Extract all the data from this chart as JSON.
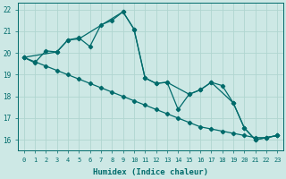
{
  "xlabel": "Humidex (Indice chaleur)",
  "xlim": [
    -0.5,
    23.5
  ],
  "ylim": [
    15.5,
    22.3
  ],
  "yticks": [
    16,
    17,
    18,
    19,
    20,
    21,
    22
  ],
  "xticks": [
    0,
    1,
    2,
    3,
    4,
    5,
    6,
    7,
    8,
    9,
    10,
    11,
    12,
    13,
    14,
    15,
    16,
    17,
    18,
    19,
    20,
    21,
    22,
    23
  ],
  "bg_color": "#cde8e5",
  "line_color": "#006b6b",
  "grid_color": "#b0d5d0",
  "lines": [
    {
      "x": [
        0,
        1,
        2,
        3,
        4,
        5,
        6,
        7,
        8,
        9,
        10,
        11,
        12,
        13,
        14,
        15,
        16,
        17,
        18,
        19,
        20,
        21,
        22,
        23
      ],
      "y": [
        19.8,
        19.6,
        19.4,
        19.2,
        19.0,
        18.8,
        18.6,
        18.4,
        18.2,
        18.0,
        17.8,
        17.6,
        17.4,
        17.2,
        17.0,
        16.8,
        16.6,
        16.5,
        16.4,
        16.3,
        16.2,
        16.1,
        16.1,
        16.2
      ]
    },
    {
      "x": [
        0,
        1,
        2,
        3,
        4,
        5,
        6,
        7,
        8,
        9,
        10,
        11,
        12,
        13,
        14,
        15,
        16,
        17,
        18,
        19,
        20,
        21,
        22,
        23
      ],
      "y": [
        19.8,
        19.55,
        20.1,
        20.05,
        20.6,
        20.7,
        20.3,
        21.3,
        21.5,
        21.9,
        21.1,
        18.85,
        18.6,
        18.65,
        17.4,
        18.1,
        18.3,
        18.65,
        18.5,
        17.7,
        16.55,
        16.0,
        16.1,
        16.2
      ]
    },
    {
      "x": [
        0,
        3,
        4,
        5,
        9,
        10,
        11,
        12,
        13,
        15,
        16,
        17,
        19,
        20,
        21,
        22,
        23
      ],
      "y": [
        19.8,
        20.05,
        20.6,
        20.65,
        21.9,
        21.1,
        18.85,
        18.6,
        18.65,
        18.1,
        18.3,
        18.65,
        17.7,
        16.55,
        16.0,
        16.1,
        16.2
      ]
    }
  ]
}
